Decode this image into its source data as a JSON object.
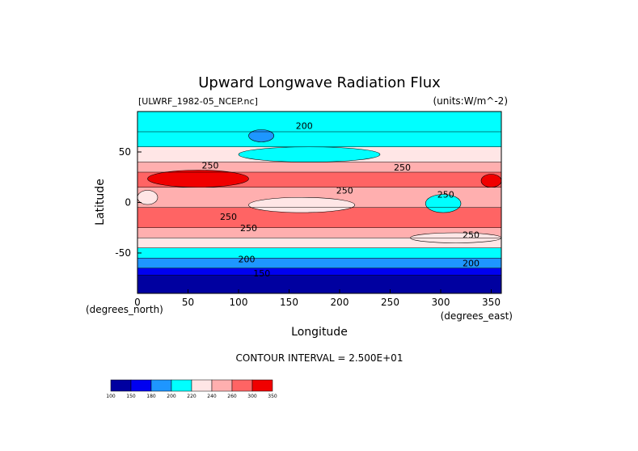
{
  "chart_data": {
    "type": "heatmap",
    "title": "Upward Longwave Radiation Flux",
    "file_label": "[ULWRF_1982-05_NCEP.nc]",
    "units_label": "(units:W/m^-2)",
    "xlabel": "Longitude",
    "ylabel": "Latitude",
    "x_unit_label": "(degrees_east)",
    "y_unit_label": "(degrees_north)",
    "xlim": [
      0,
      360
    ],
    "ylim": [
      -90,
      90
    ],
    "x_ticks": [
      0,
      50,
      100,
      150,
      200,
      250,
      300,
      350
    ],
    "y_ticks": [
      -50,
      0,
      50
    ],
    "contour_interval_text": "CONTOUR INTERVAL = 2.500E+01",
    "contour_labels": [
      {
        "text": "200",
        "lon": 165,
        "lat": 76
      },
      {
        "text": "250",
        "lon": 72,
        "lat": 37
      },
      {
        "text": "250",
        "lon": 262,
        "lat": 35
      },
      {
        "text": "250",
        "lon": 205,
        "lat": 12
      },
      {
        "text": "250",
        "lon": 305,
        "lat": 8
      },
      {
        "text": "250",
        "lon": 90,
        "lat": -14
      },
      {
        "text": "250",
        "lon": 110,
        "lat": -25
      },
      {
        "text": "250",
        "lon": 330,
        "lat": -32
      },
      {
        "text": "200",
        "lon": 108,
        "lat": -56
      },
      {
        "text": "200",
        "lon": 330,
        "lat": -60
      },
      {
        "text": "150",
        "lon": 123,
        "lat": -70
      }
    ],
    "colorbar": {
      "ticks": [
        "100",
        "150",
        "180",
        "200",
        "220",
        "240",
        "260",
        "300",
        "350"
      ],
      "colors": [
        "#0000a0",
        "#0000f0",
        "#1e96ff",
        "#00ffff",
        "#ffe6e6",
        "#ffafaf",
        "#ff6464",
        "#f00000"
      ]
    },
    "lat_bands": [
      {
        "lat": [
          70,
          90
        ],
        "value": 205
      },
      {
        "lat": [
          55,
          70
        ],
        "value": 215
      },
      {
        "lat": [
          40,
          55
        ],
        "value": 232
      },
      {
        "lat": [
          30,
          40
        ],
        "value": 255
      },
      {
        "lat": [
          15,
          30
        ],
        "value": 268
      },
      {
        "lat": [
          -5,
          15
        ],
        "value": 250
      },
      {
        "lat": [
          -25,
          -5
        ],
        "value": 262
      },
      {
        "lat": [
          -35,
          -25
        ],
        "value": 250
      },
      {
        "lat": [
          -45,
          -35
        ],
        "value": 232
      },
      {
        "lat": [
          -55,
          -45
        ],
        "value": 212
      },
      {
        "lat": [
          -65,
          -55
        ],
        "value": 195
      },
      {
        "lat": [
          -72,
          -65
        ],
        "value": 170
      },
      {
        "lat": [
          -90,
          -72
        ],
        "value": 140
      }
    ],
    "anomalies": [
      {
        "lon": [
          10,
          110
        ],
        "lat": [
          15,
          32
        ],
        "value": 305
      },
      {
        "lon": [
          340,
          360
        ],
        "lat": [
          15,
          28
        ],
        "value": 305
      },
      {
        "lon": [
          110,
          215
        ],
        "lat": [
          -10,
          5
        ],
        "value": 220
      },
      {
        "lon": [
          285,
          320
        ],
        "lat": [
          -10,
          8
        ],
        "value": 200
      },
      {
        "lon": [
          100,
          240
        ],
        "lat": [
          40,
          55
        ],
        "value": 210
      },
      {
        "lon": [
          0,
          20
        ],
        "lat": [
          -2,
          12
        ],
        "value": 230
      },
      {
        "lon": [
          110,
          135
        ],
        "lat": [
          60,
          72
        ],
        "value": 190
      },
      {
        "lon": [
          270,
          360
        ],
        "lat": [
          -40,
          -30
        ],
        "value": 232
      }
    ]
  }
}
